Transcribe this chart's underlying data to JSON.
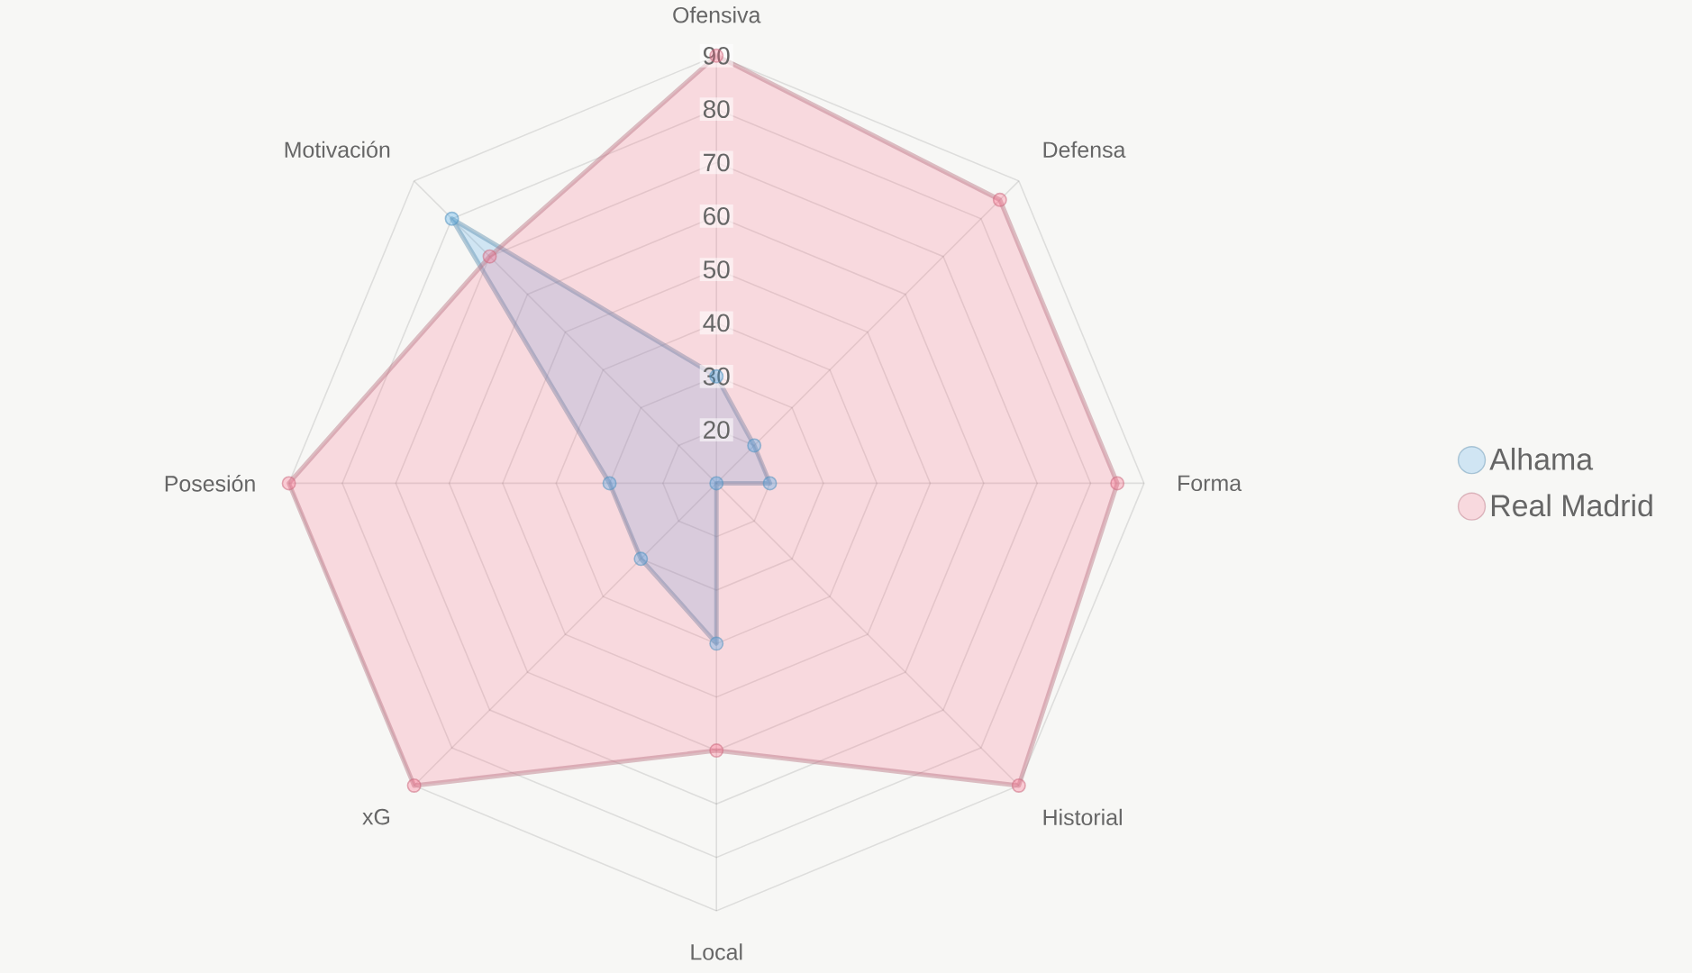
{
  "chart_data": {
    "type": "radar",
    "categories": [
      "Ofensiva",
      "Defensa",
      "Forma",
      "Historial",
      "Local",
      "xG",
      "Posesión",
      "Motivación"
    ],
    "series": [
      {
        "name": "Alhama",
        "color": "#36a2eb",
        "values": [
          30,
          20,
          20,
          10,
          40,
          30,
          30,
          80
        ]
      },
      {
        "name": "Real Madrid",
        "color": "#ff6384",
        "values": [
          90,
          85,
          85,
          90,
          60,
          90,
          90,
          70
        ]
      }
    ],
    "ylim": [
      10,
      90
    ],
    "yticks": [
      20,
      30,
      40,
      50,
      60,
      70,
      80,
      90
    ],
    "grid": true,
    "legend": "right",
    "marker": "circle"
  }
}
